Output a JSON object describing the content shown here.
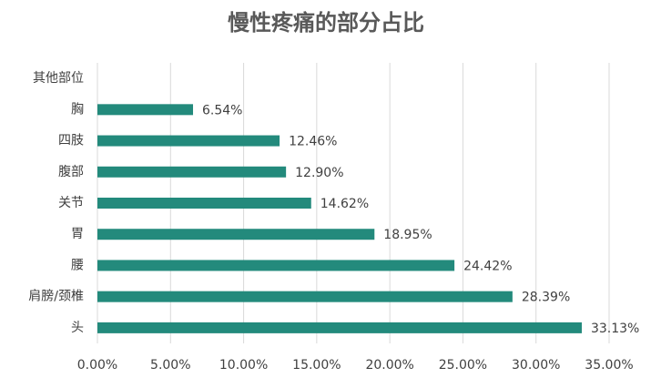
{
  "chart_data": {
    "type": "bar",
    "orientation": "horizontal",
    "title": "慢性疼痛的部分占比",
    "categories": [
      "其他部位",
      "胸",
      "四肢",
      "腹部",
      "关节",
      "胃",
      "腰",
      "肩膀/颈椎",
      "头"
    ],
    "values": [
      null,
      6.54,
      12.46,
      12.9,
      14.62,
      18.95,
      24.42,
      28.39,
      33.13
    ],
    "value_labels": [
      null,
      "6.54%",
      "12.46%",
      "12.90%",
      "14.62%",
      "18.95%",
      "24.42%",
      "28.39%",
      "33.13%"
    ],
    "color": "#238a7c",
    "xlim": [
      0,
      35
    ],
    "xticks": [
      {
        "value": 0,
        "label": "0.00%"
      },
      {
        "value": 5,
        "label": "5.00%"
      },
      {
        "value": 10,
        "label": "10.00%"
      },
      {
        "value": 15,
        "label": "15.00%"
      },
      {
        "value": 20,
        "label": "20.00%"
      },
      {
        "value": 25,
        "label": "25.00%"
      },
      {
        "value": 30,
        "label": "30.00%"
      },
      {
        "value": 35,
        "label": "35.00%"
      }
    ],
    "grid": true
  }
}
